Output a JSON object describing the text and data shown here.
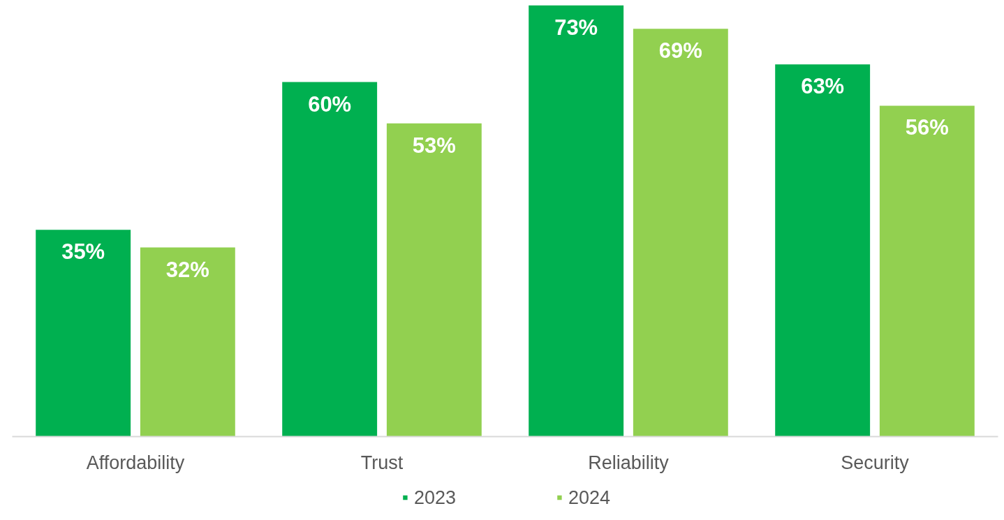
{
  "chart_data": {
    "type": "bar",
    "categories": [
      "Affordability",
      "Trust",
      "Reliability",
      "Security"
    ],
    "series": [
      {
        "name": "2023",
        "color": "#00b050",
        "values": [
          35,
          60,
          73,
          63
        ],
        "value_labels": [
          "35%",
          "60%",
          "73%",
          "63%"
        ]
      },
      {
        "name": "2024",
        "color": "#92d050",
        "values": [
          32,
          53,
          69,
          56
        ],
        "value_labels": [
          "32%",
          "53%",
          "69%",
          "56%"
        ]
      }
    ],
    "legend": "bottom",
    "grid": false
  }
}
